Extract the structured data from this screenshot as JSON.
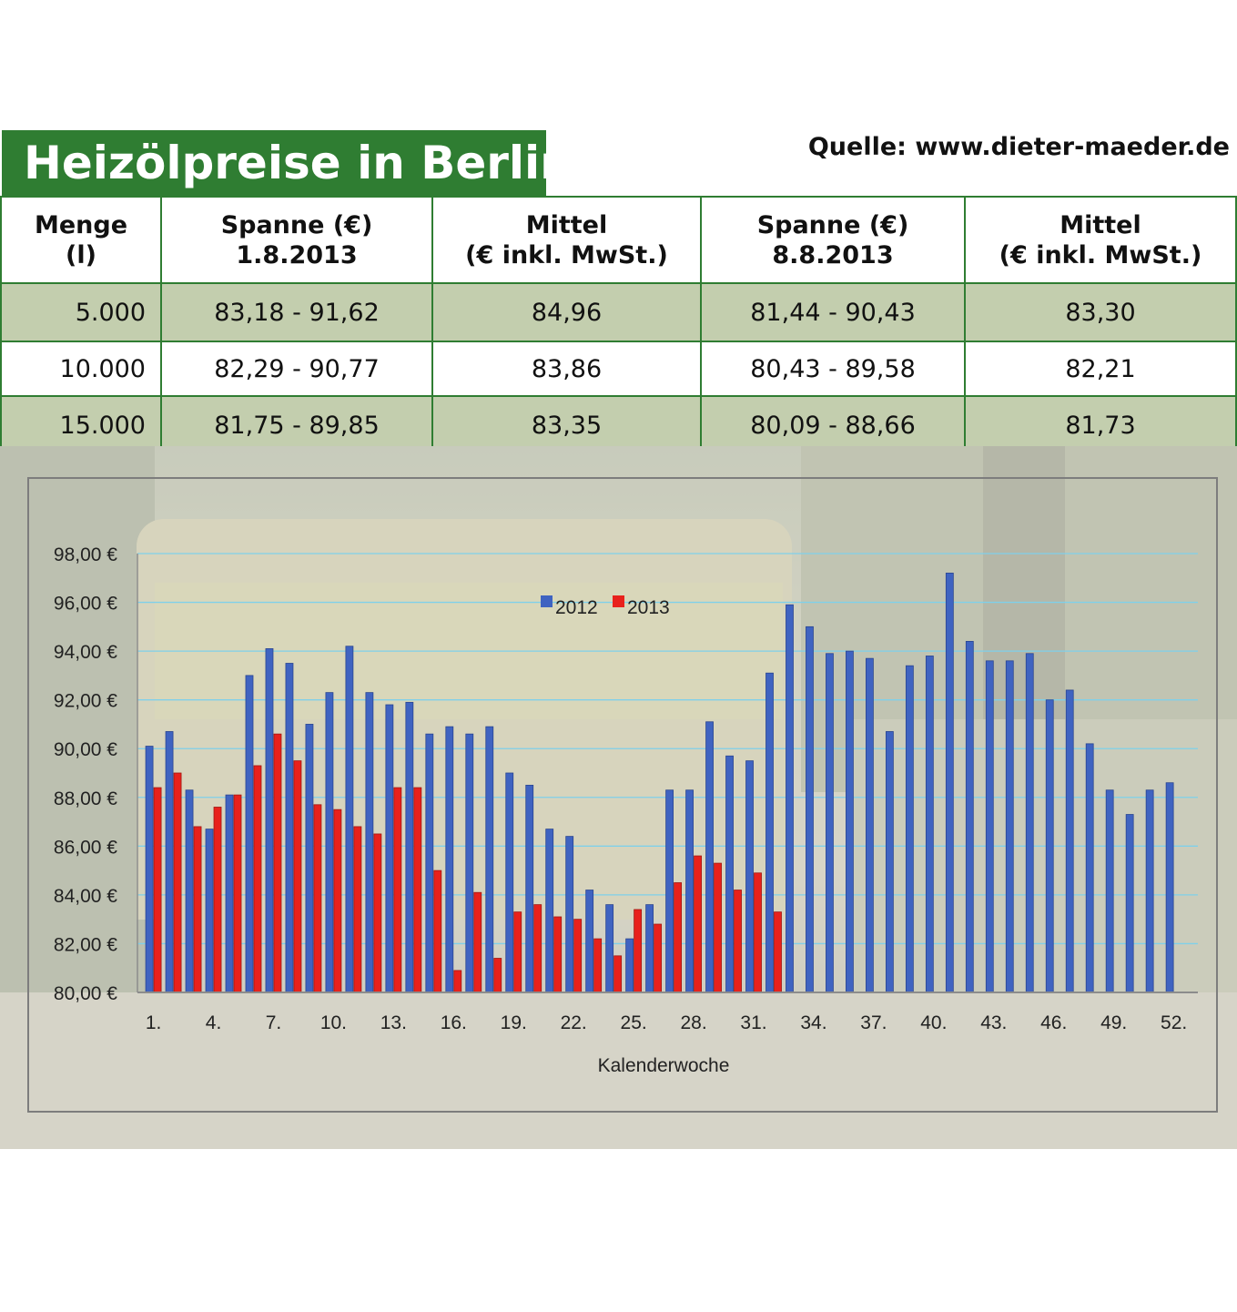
{
  "header": {
    "title": "Heizölpreise in Berlin",
    "source": "Quelle: www.dieter-maeder.de"
  },
  "table": {
    "headers": [
      [
        "Menge",
        "(l)"
      ],
      [
        "Spanne (€)",
        "1.8.2013"
      ],
      [
        "Mittel",
        "(€ inkl. MwSt.)"
      ],
      [
        "Spanne (€)",
        "8.8.2013"
      ],
      [
        "Mittel",
        "(€ inkl. MwSt.)"
      ]
    ],
    "rows": [
      [
        "5.000",
        "83,18 - 91,62",
        "84,96",
        "81,44 - 90,43",
        "83,30"
      ],
      [
        "10.000",
        "82,29 - 90,77",
        "83,86",
        "80,43 - 89,58",
        "82,21"
      ],
      [
        "15.000",
        "81,75 - 89,85",
        "83,35",
        "80,09 - 88,66",
        "81,73"
      ]
    ]
  },
  "colors": {
    "title_bg": "#2f7d32",
    "row_alt": "#c3ceae",
    "series_2012": "#3f63c1",
    "series_2013": "#e8211c",
    "grid": "#7fd0ea"
  },
  "chart_data": {
    "type": "bar",
    "xlabel": "Kalenderwoche",
    "ylabel": "",
    "ylim": [
      80,
      98
    ],
    "y_ticks": [
      "80,00 €",
      "82,00 €",
      "84,00 €",
      "86,00 €",
      "88,00 €",
      "90,00 €",
      "92,00 €",
      "94,00 €",
      "96,00 €",
      "98,00 €"
    ],
    "x_tick_labels": [
      "1.",
      "4.",
      "7.",
      "10.",
      "13.",
      "16.",
      "19.",
      "22.",
      "25.",
      "28.",
      "31.",
      "34.",
      "37.",
      "40.",
      "43.",
      "46.",
      "49.",
      "52."
    ],
    "x_tick_weeks": [
      1,
      4,
      7,
      10,
      13,
      16,
      19,
      22,
      25,
      28,
      31,
      34,
      37,
      40,
      43,
      46,
      49,
      52
    ],
    "legend_position": "top-center",
    "grid": true,
    "series": [
      {
        "name": "2012",
        "values": [
          90.1,
          90.7,
          88.3,
          86.7,
          88.1,
          93.0,
          94.1,
          93.5,
          91.0,
          92.3,
          94.2,
          92.3,
          91.8,
          91.9,
          90.6,
          90.9,
          90.6,
          90.9,
          89.0,
          88.5,
          86.7,
          86.4,
          84.2,
          83.6,
          82.2,
          83.6,
          88.3,
          88.3,
          91.1,
          89.7,
          89.5,
          93.1,
          95.9,
          95.0,
          93.9,
          94.0,
          93.7,
          90.7,
          93.4,
          93.8,
          97.2,
          94.4,
          93.6,
          93.6,
          93.9,
          92.0,
          92.4,
          90.2,
          88.3,
          87.3,
          88.3,
          88.6
        ]
      },
      {
        "name": "2013",
        "values": [
          88.4,
          89.0,
          86.8,
          87.6,
          88.1,
          89.3,
          90.6,
          89.5,
          87.7,
          87.5,
          86.8,
          86.5,
          88.4,
          88.4,
          85.0,
          80.9,
          84.1,
          81.4,
          83.3,
          83.6,
          83.1,
          83.0,
          82.2,
          81.5,
          83.4,
          82.8,
          84.5,
          85.6,
          85.3,
          84.2,
          84.9,
          83.3
        ]
      }
    ]
  }
}
